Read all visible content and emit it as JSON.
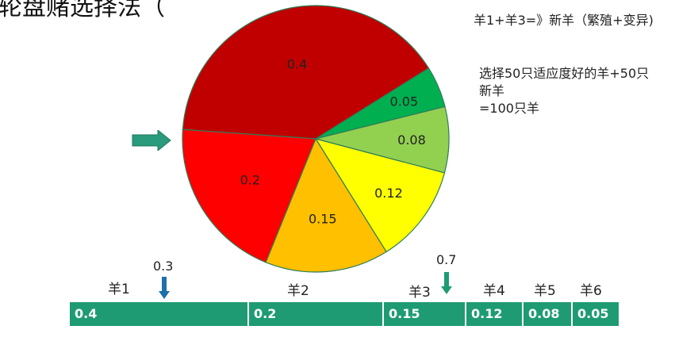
{
  "title": "轮盘赌选择法（",
  "notes": {
    "crossover": "羊1+羊3=》新羊（繁殖+变异)",
    "selection_lines": [
      "选择50只适应度好的羊+50只",
      "新羊",
      "=100只羊"
    ]
  },
  "pie": {
    "slices": [
      {
        "label": "0.4",
        "value": 0.4,
        "color": "#c00000"
      },
      {
        "label": "0.05",
        "value": 0.05,
        "color": "#00b050"
      },
      {
        "label": "0.08",
        "value": 0.08,
        "color": "#92d050"
      },
      {
        "label": "0.12",
        "value": 0.12,
        "color": "#ffff00"
      },
      {
        "label": "0.15",
        "value": 0.15,
        "color": "#ffc000"
      },
      {
        "label": "0.2",
        "value": 0.2,
        "color": "#ff0000"
      }
    ]
  },
  "bar": {
    "segments": [
      {
        "label": "0.4",
        "value": 0.4
      },
      {
        "label": "0.2",
        "value": 0.2
      },
      {
        "label": "0.15",
        "value": 0.15
      },
      {
        "label": "0.12",
        "value": 0.12
      },
      {
        "label": "0.08",
        "value": 0.08
      },
      {
        "label": "0.05",
        "value": 0.05
      }
    ],
    "sheep_labels": [
      "羊1",
      "羊2",
      "羊3",
      "羊4",
      "羊5",
      "羊6"
    ],
    "markers": [
      {
        "label": "0.3",
        "value": 0.3,
        "color": "#1f6fa8"
      },
      {
        "label": "0.7",
        "value": 0.7,
        "color": "#1f9b73"
      }
    ]
  },
  "colors": {
    "bar": "#1f9b73",
    "side_arrow": "#2a9a7c"
  }
}
